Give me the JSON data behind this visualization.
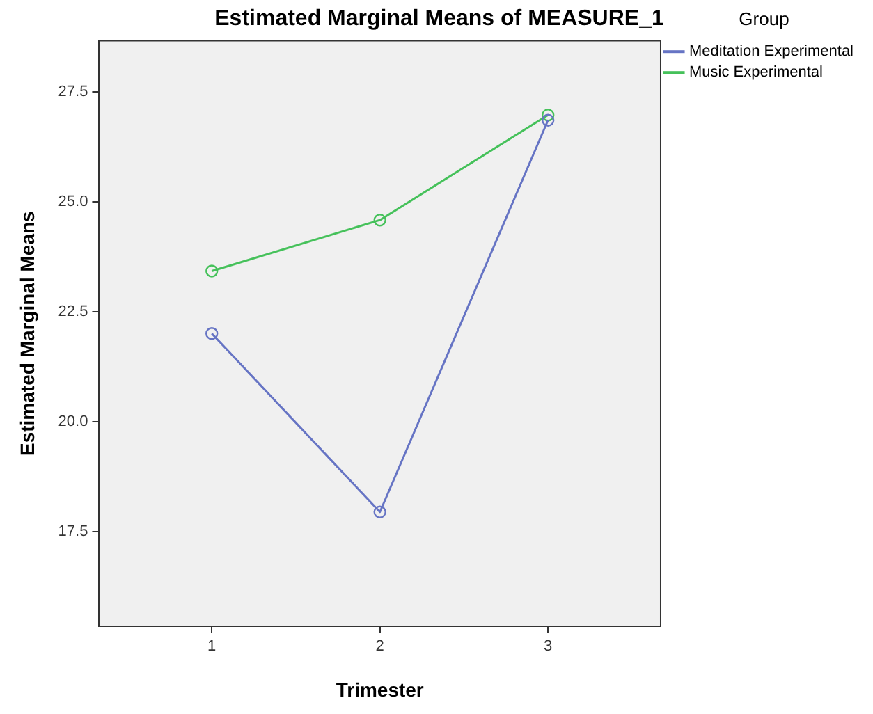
{
  "chart_data": {
    "type": "line",
    "title": "Estimated Marginal Means of MEASURE_1",
    "xlabel": "Trimester",
    "ylabel": "Estimated Marginal Means",
    "legend_title": "Group",
    "x": [
      1,
      2,
      3
    ],
    "series": [
      {
        "name": "Meditation Experimental",
        "color": "#6674c4",
        "values": [
          22.0,
          17.94,
          26.85
        ]
      },
      {
        "name": "Music Experimental",
        "color": "#45c15a",
        "values": [
          23.42,
          24.58,
          26.97
        ]
      }
    ],
    "xlim": [
      0.33,
      3.67
    ],
    "xticks": [
      1,
      2,
      3
    ],
    "ylim": [
      15.34,
      28.66
    ],
    "yticks": [
      {
        "value": 17.5,
        "label": "17.5"
      },
      {
        "value": 20,
        "label": "20.0"
      },
      {
        "value": 22.5,
        "label": "22.5"
      },
      {
        "value": 25,
        "label": "25.0"
      },
      {
        "value": 27.5,
        "label": "27.5"
      }
    ],
    "grid": false,
    "legend": "top right",
    "marker": "circle",
    "line_style": "solid"
  }
}
